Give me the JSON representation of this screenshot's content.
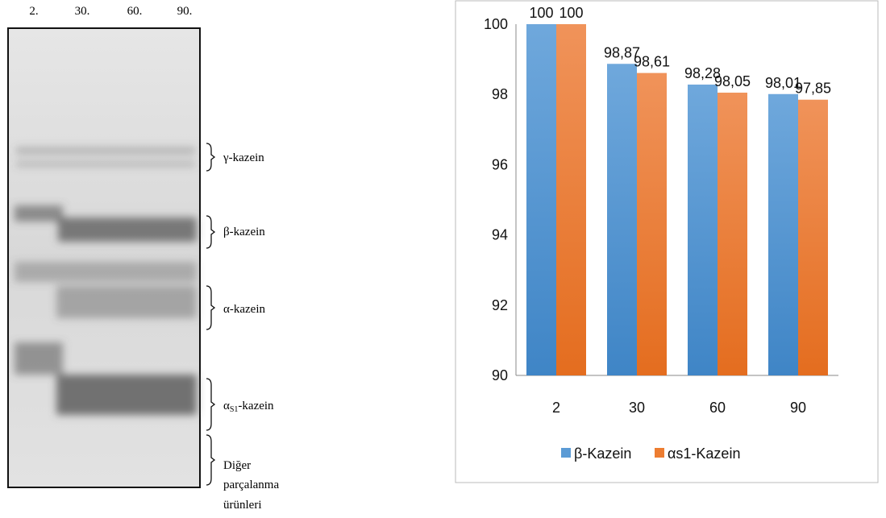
{
  "gel": {
    "lanes": [
      "2.",
      "30.",
      "60.",
      "90."
    ],
    "bands": [
      {
        "parts": [
          "γ-kazein"
        ]
      },
      {
        "parts": [
          "β-kazein"
        ]
      },
      {
        "parts": [
          "α-kazein"
        ]
      },
      {
        "parts": [
          "α",
          "S1",
          "-kazein"
        ]
      },
      {
        "parts": [
          "Diğer",
          "parçalanma",
          "ürünleri"
        ]
      }
    ]
  },
  "chart_data": {
    "type": "bar",
    "categories": [
      "2",
      "30",
      "60",
      "90"
    ],
    "series": [
      {
        "name": "β-Kazein",
        "color": "#5b9bd5",
        "values": [
          100,
          98.87,
          98.28,
          98.01
        ],
        "value_labels": [
          "100",
          "98,87",
          "98,28",
          "98,01"
        ]
      },
      {
        "name": "αs1-Kazein",
        "color": "#ed7d31",
        "values": [
          100,
          98.61,
          98.05,
          97.85
        ],
        "value_labels": [
          "100",
          "98,61",
          "98,05",
          "97,85"
        ]
      }
    ],
    "ylim": [
      90,
      100
    ],
    "yticks": [
      90,
      92,
      94,
      96,
      98,
      100
    ],
    "grid": false,
    "legend": "bottom"
  }
}
